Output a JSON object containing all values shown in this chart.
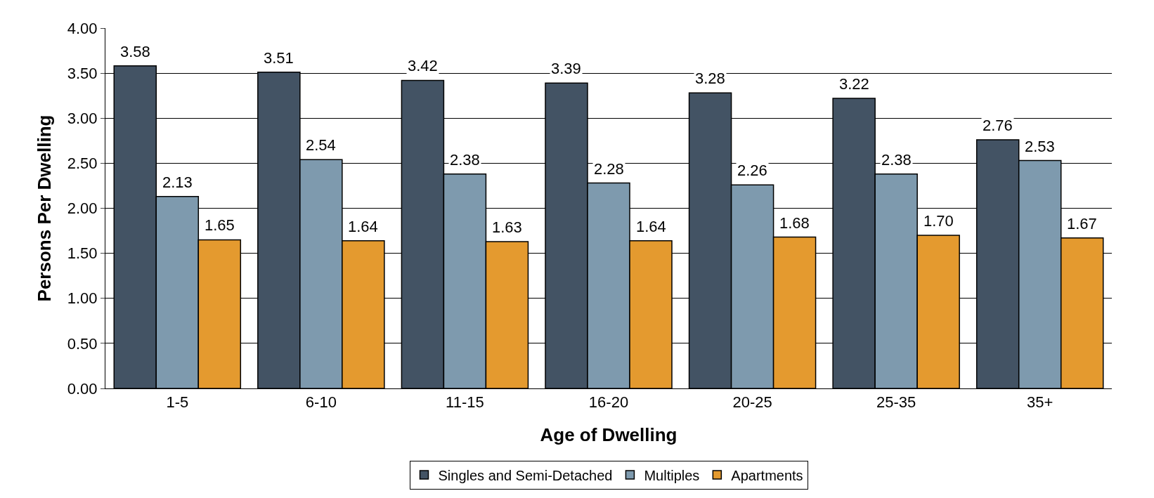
{
  "chart_data": {
    "type": "bar",
    "xlabel": "Age of Dwelling",
    "ylabel": "Persons Per Dwelling",
    "categories": [
      "1-5",
      "6-10",
      "11-15",
      "16-20",
      "20-25",
      "25-35",
      "35+"
    ],
    "series": [
      {
        "name": "Singles and Semi-Detached",
        "color": "#435364",
        "values": [
          3.58,
          3.51,
          3.42,
          3.39,
          3.28,
          3.22,
          2.76
        ],
        "value_labels": [
          "3.58",
          "3.51",
          "3.42",
          "3.39",
          "3.28",
          "3.22",
          "2.76"
        ]
      },
      {
        "name": "Multiples",
        "color": "#7e9aae",
        "values": [
          2.13,
          2.54,
          2.38,
          2.28,
          2.26,
          2.38,
          2.53
        ],
        "value_labels": [
          "2.13",
          "2.54",
          "2.38",
          "2.28",
          "2.26",
          "2.38",
          "2.53"
        ]
      },
      {
        "name": "Apartments",
        "color": "#e49a2f",
        "values": [
          1.65,
          1.64,
          1.63,
          1.64,
          1.68,
          1.7,
          1.67
        ],
        "value_labels": [
          "1.65",
          "1.64",
          "1.63",
          "1.64",
          "1.68",
          "1.70",
          "1.67"
        ]
      }
    ],
    "ylim": [
      0,
      4
    ],
    "yticks": [
      {
        "value": 0,
        "label": "0.00"
      },
      {
        "value": 0.5,
        "label": "0.50"
      },
      {
        "value": 1,
        "label": "1.00"
      },
      {
        "value": 1.5,
        "label": "1.50"
      },
      {
        "value": 2,
        "label": "2.00"
      },
      {
        "value": 2.5,
        "label": "2.50"
      },
      {
        "value": 3,
        "label": "3.00"
      },
      {
        "value": 3.5,
        "label": "3.50"
      },
      {
        "value": 4,
        "label": "4.00"
      }
    ],
    "grid": "y",
    "legend": "bottom"
  }
}
